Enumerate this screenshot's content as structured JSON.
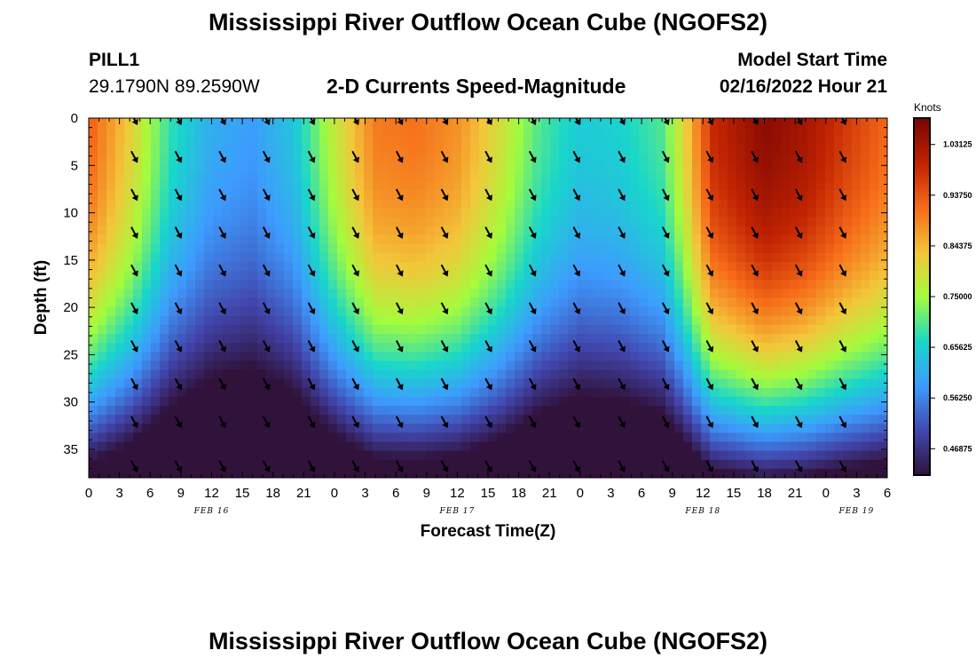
{
  "header": {
    "title": "Mississippi River Outflow Ocean Cube (NGOFS2)",
    "station": "PILL1",
    "coordinates": "29.1790N  89.2590W",
    "subtitle": "2-D Currents Speed-Magnitude",
    "model_start_label": "Model Start Time",
    "model_start_value": "02/16/2022 Hour 21"
  },
  "footer": {
    "title": "Mississippi River Outflow Ocean Cube (NGOFS2)"
  },
  "chart_data": {
    "type": "heatmap",
    "xlabel": "Forecast Time(Z)",
    "ylabel": "Depth (ft)",
    "x_tick_labels": [
      "0",
      "3",
      "6",
      "9",
      "12",
      "15",
      "18",
      "21",
      "0",
      "3",
      "6",
      "9",
      "12",
      "15",
      "18",
      "21",
      "0",
      "3",
      "6",
      "9",
      "12",
      "15",
      "18",
      "21",
      "0",
      "3",
      "6"
    ],
    "date_labels": [
      {
        "label": "FEB 16",
        "at_hour": 12
      },
      {
        "label": "FEB 17",
        "at_hour": 36
      },
      {
        "label": "FEB 18",
        "at_hour": 60
      },
      {
        "label": "FEB 19",
        "at_hour": 75
      }
    ],
    "xlim_hours": [
      0,
      78
    ],
    "y_ticks": [
      0,
      5,
      10,
      15,
      20,
      25,
      30,
      35
    ],
    "ylim": [
      0,
      38
    ],
    "colorbar": {
      "unit": "Knots",
      "range": [
        0.42,
        1.08
      ],
      "ticks": [
        "1.03125",
        "0.93750",
        "0.84375",
        "0.75000",
        "0.65625",
        "0.56250",
        "0.46875"
      ],
      "tick_values": [
        1.03125,
        0.9375,
        0.84375,
        0.75,
        0.65625,
        0.5625,
        0.46875
      ]
    },
    "surface_speed_by_hour": [
      [
        0,
        0.93
      ],
      [
        4,
        0.82
      ],
      [
        8,
        0.68
      ],
      [
        12,
        0.61
      ],
      [
        16,
        0.59
      ],
      [
        20,
        0.64
      ],
      [
        24,
        0.78
      ],
      [
        28,
        0.9
      ],
      [
        32,
        0.91
      ],
      [
        36,
        0.88
      ],
      [
        40,
        0.8
      ],
      [
        44,
        0.7
      ],
      [
        48,
        0.65
      ],
      [
        52,
        0.66
      ],
      [
        56,
        0.7
      ],
      [
        58,
        0.8
      ],
      [
        61,
        0.99
      ],
      [
        66,
        1.06
      ],
      [
        70,
        1.03
      ],
      [
        74,
        0.97
      ],
      [
        78,
        0.92
      ]
    ],
    "arrow_rows_depth": [
      0,
      4,
      8,
      12,
      16,
      20,
      24,
      28,
      32,
      36.7
    ],
    "arrow_cols_hour": [
      4.4,
      8.7,
      13.0,
      17.3,
      21.7,
      26.0,
      30.3,
      34.7,
      39.0,
      43.3,
      47.6,
      52.0,
      56.3,
      60.6,
      65.0,
      69.3,
      73.6
    ],
    "arrow_direction": "south-southeast"
  }
}
